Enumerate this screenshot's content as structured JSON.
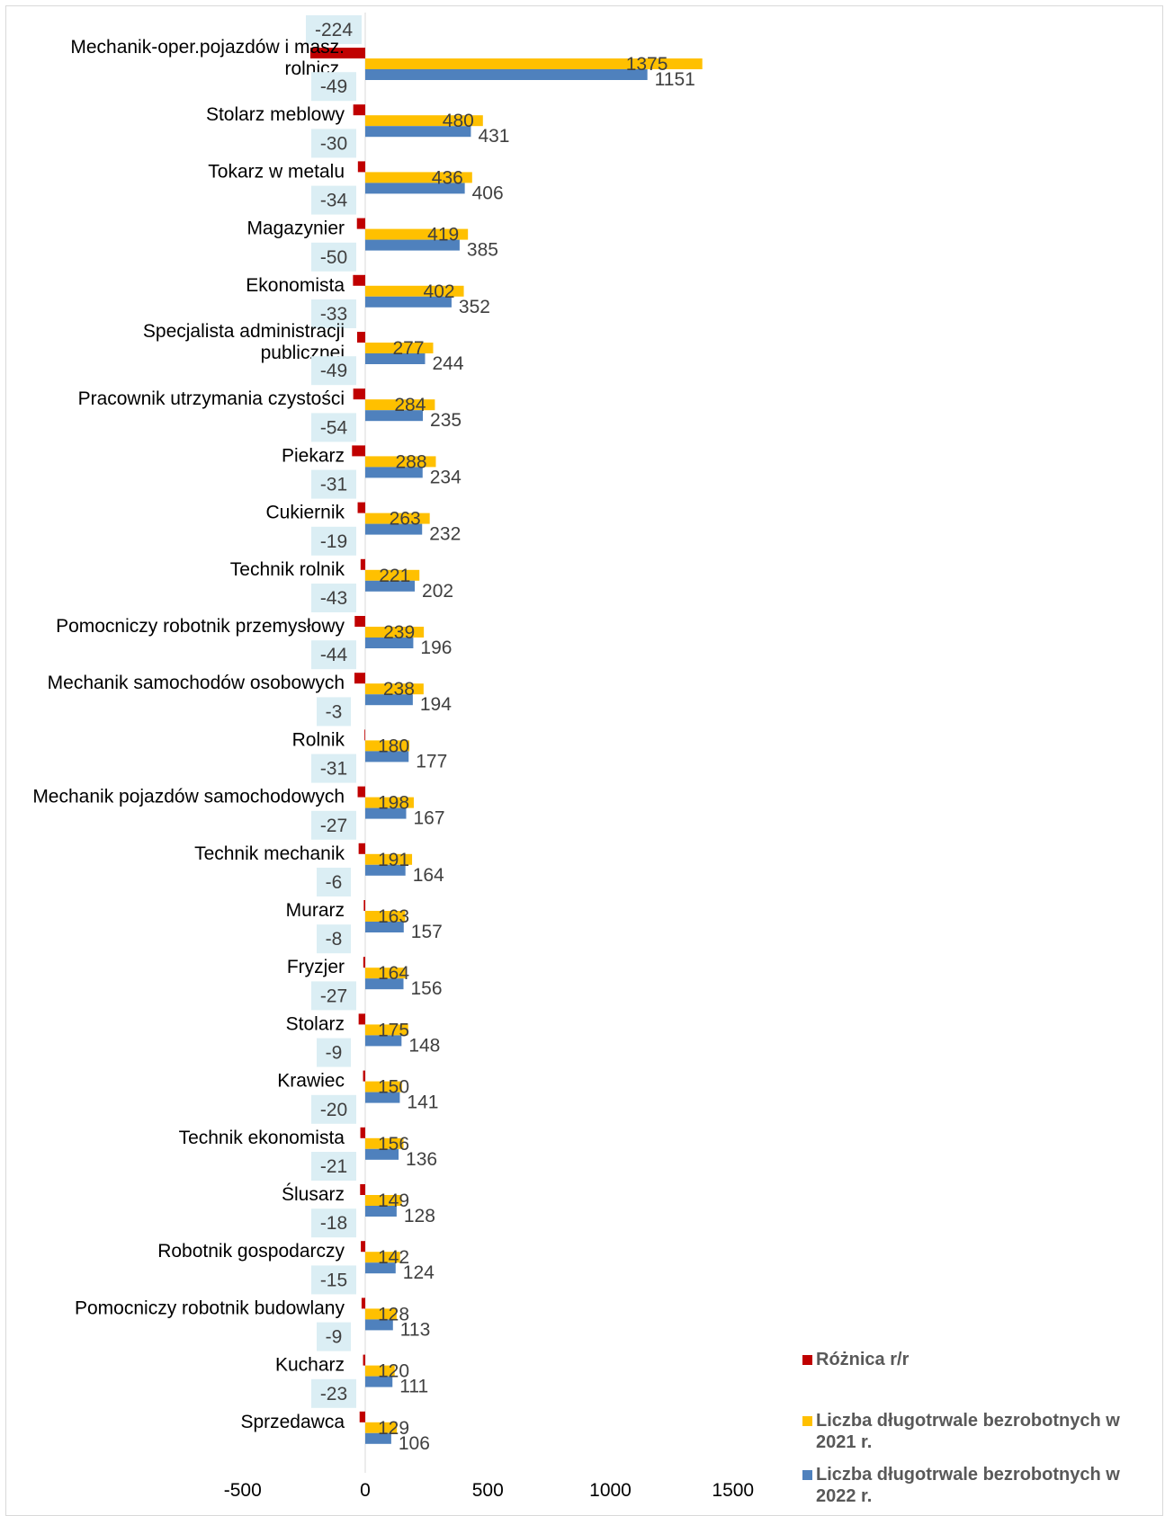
{
  "chart_data": {
    "type": "bar",
    "orientation": "horizontal",
    "categories": [
      "Mechanik-oper.pojazdów i masz. rolnicz.",
      "Stolarz meblowy",
      "Tokarz w metalu",
      "Magazynier",
      "Ekonomista",
      "Specjalista administracji publicznej",
      "Pracownik utrzymania czystości",
      "Piekarz",
      "Cukiernik",
      "Technik rolnik",
      "Pomocniczy robotnik przemysłowy",
      "Mechanik samochodów osobowych",
      "Rolnik",
      "Mechanik pojazdów samochodowych",
      "Technik mechanik",
      "Murarz",
      "Fryzjer",
      "Stolarz",
      "Krawiec",
      "Technik ekonomista",
      "Ślusarz",
      "Robotnik gospodarczy",
      "Pomocniczy robotnik budowlany",
      "Kucharz",
      "Sprzedawca"
    ],
    "series": [
      {
        "name": "Różnica r/r",
        "color": "#c00000",
        "values": [
          -224,
          -49,
          -30,
          -34,
          -50,
          -33,
          -49,
          -54,
          -31,
          -19,
          -43,
          -44,
          -3,
          -31,
          -27,
          -6,
          -8,
          -27,
          -9,
          -20,
          -21,
          -18,
          -15,
          -9,
          -23
        ]
      },
      {
        "name": "Liczba długotrwale bezrobotnych w 2021 r.",
        "color": "#ffc000",
        "values": [
          1375,
          480,
          436,
          419,
          402,
          277,
          284,
          288,
          263,
          221,
          239,
          238,
          180,
          198,
          191,
          163,
          164,
          175,
          150,
          156,
          149,
          142,
          128,
          120,
          129
        ]
      },
      {
        "name": "Liczba długotrwale bezrobotnych w 2022 r.",
        "color": "#4f81bd",
        "values": [
          1151,
          431,
          406,
          385,
          352,
          244,
          235,
          234,
          232,
          202,
          196,
          194,
          177,
          167,
          164,
          157,
          156,
          148,
          141,
          136,
          128,
          124,
          113,
          111,
          106
        ]
      }
    ],
    "xticks": [
      -500,
      0,
      500,
      1000,
      1500
    ],
    "xlim": [
      -500,
      1500
    ],
    "legend_position": "bottom-right",
    "grid": false
  }
}
